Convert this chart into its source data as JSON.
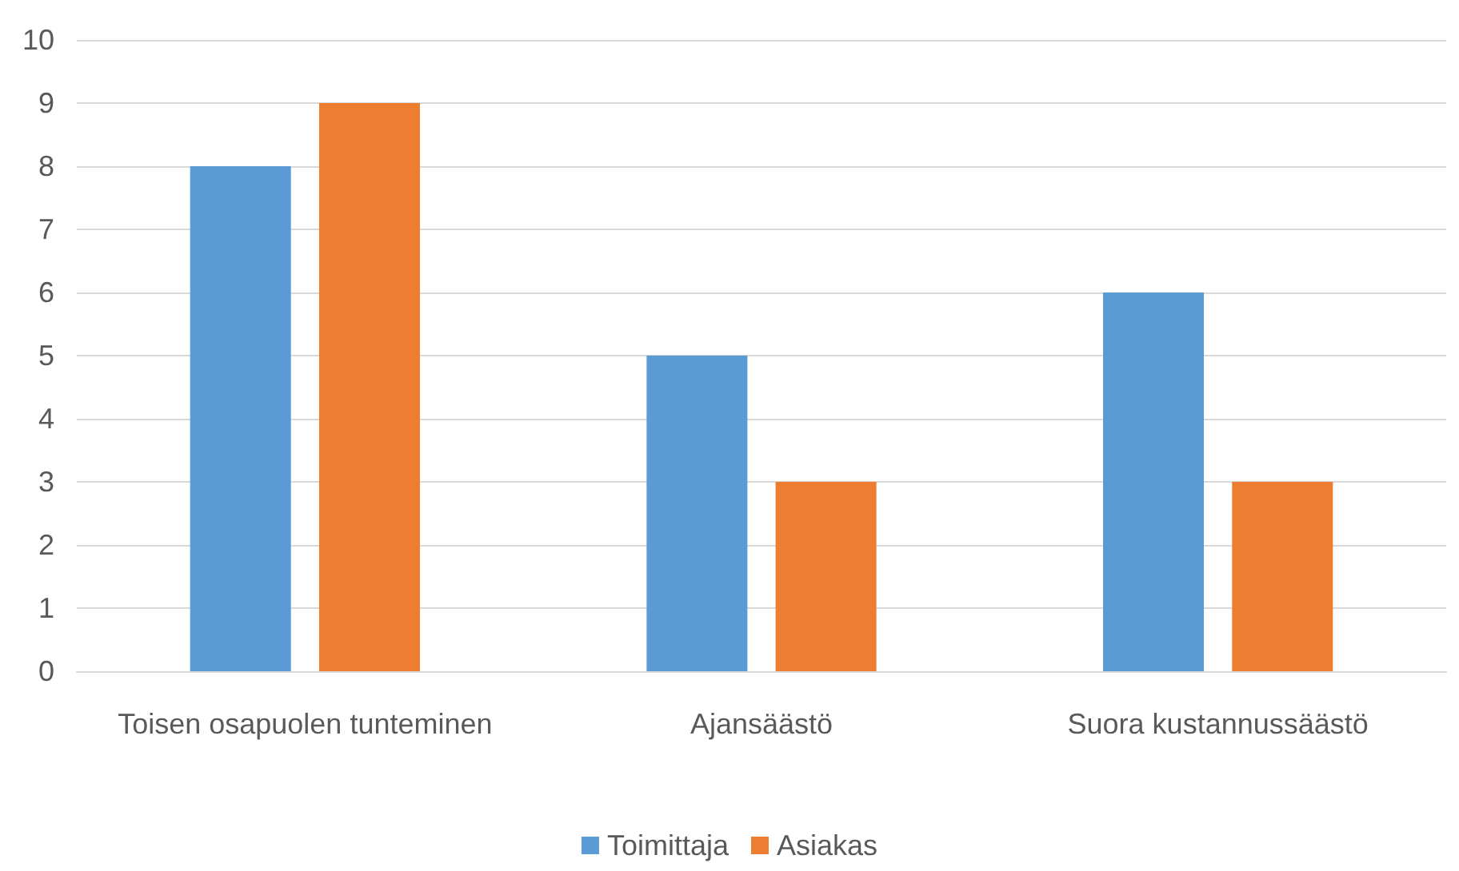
{
  "chart_data": {
    "type": "bar",
    "categories": [
      "Toisen osapuolen tunteminen",
      "Ajansäästö",
      "Suora kustannussäästö"
    ],
    "series": [
      {
        "name": "Toimittaja",
        "color": "#5b9bd5",
        "values": [
          8,
          5,
          6
        ]
      },
      {
        "name": "Asiakas",
        "color": "#ed7d31",
        "values": [
          9,
          3,
          3
        ]
      }
    ],
    "ylim": [
      0,
      10
    ],
    "yticks": [
      0,
      1,
      2,
      3,
      4,
      5,
      6,
      7,
      8,
      9,
      10
    ],
    "grid": "y",
    "legend": "bottom"
  }
}
